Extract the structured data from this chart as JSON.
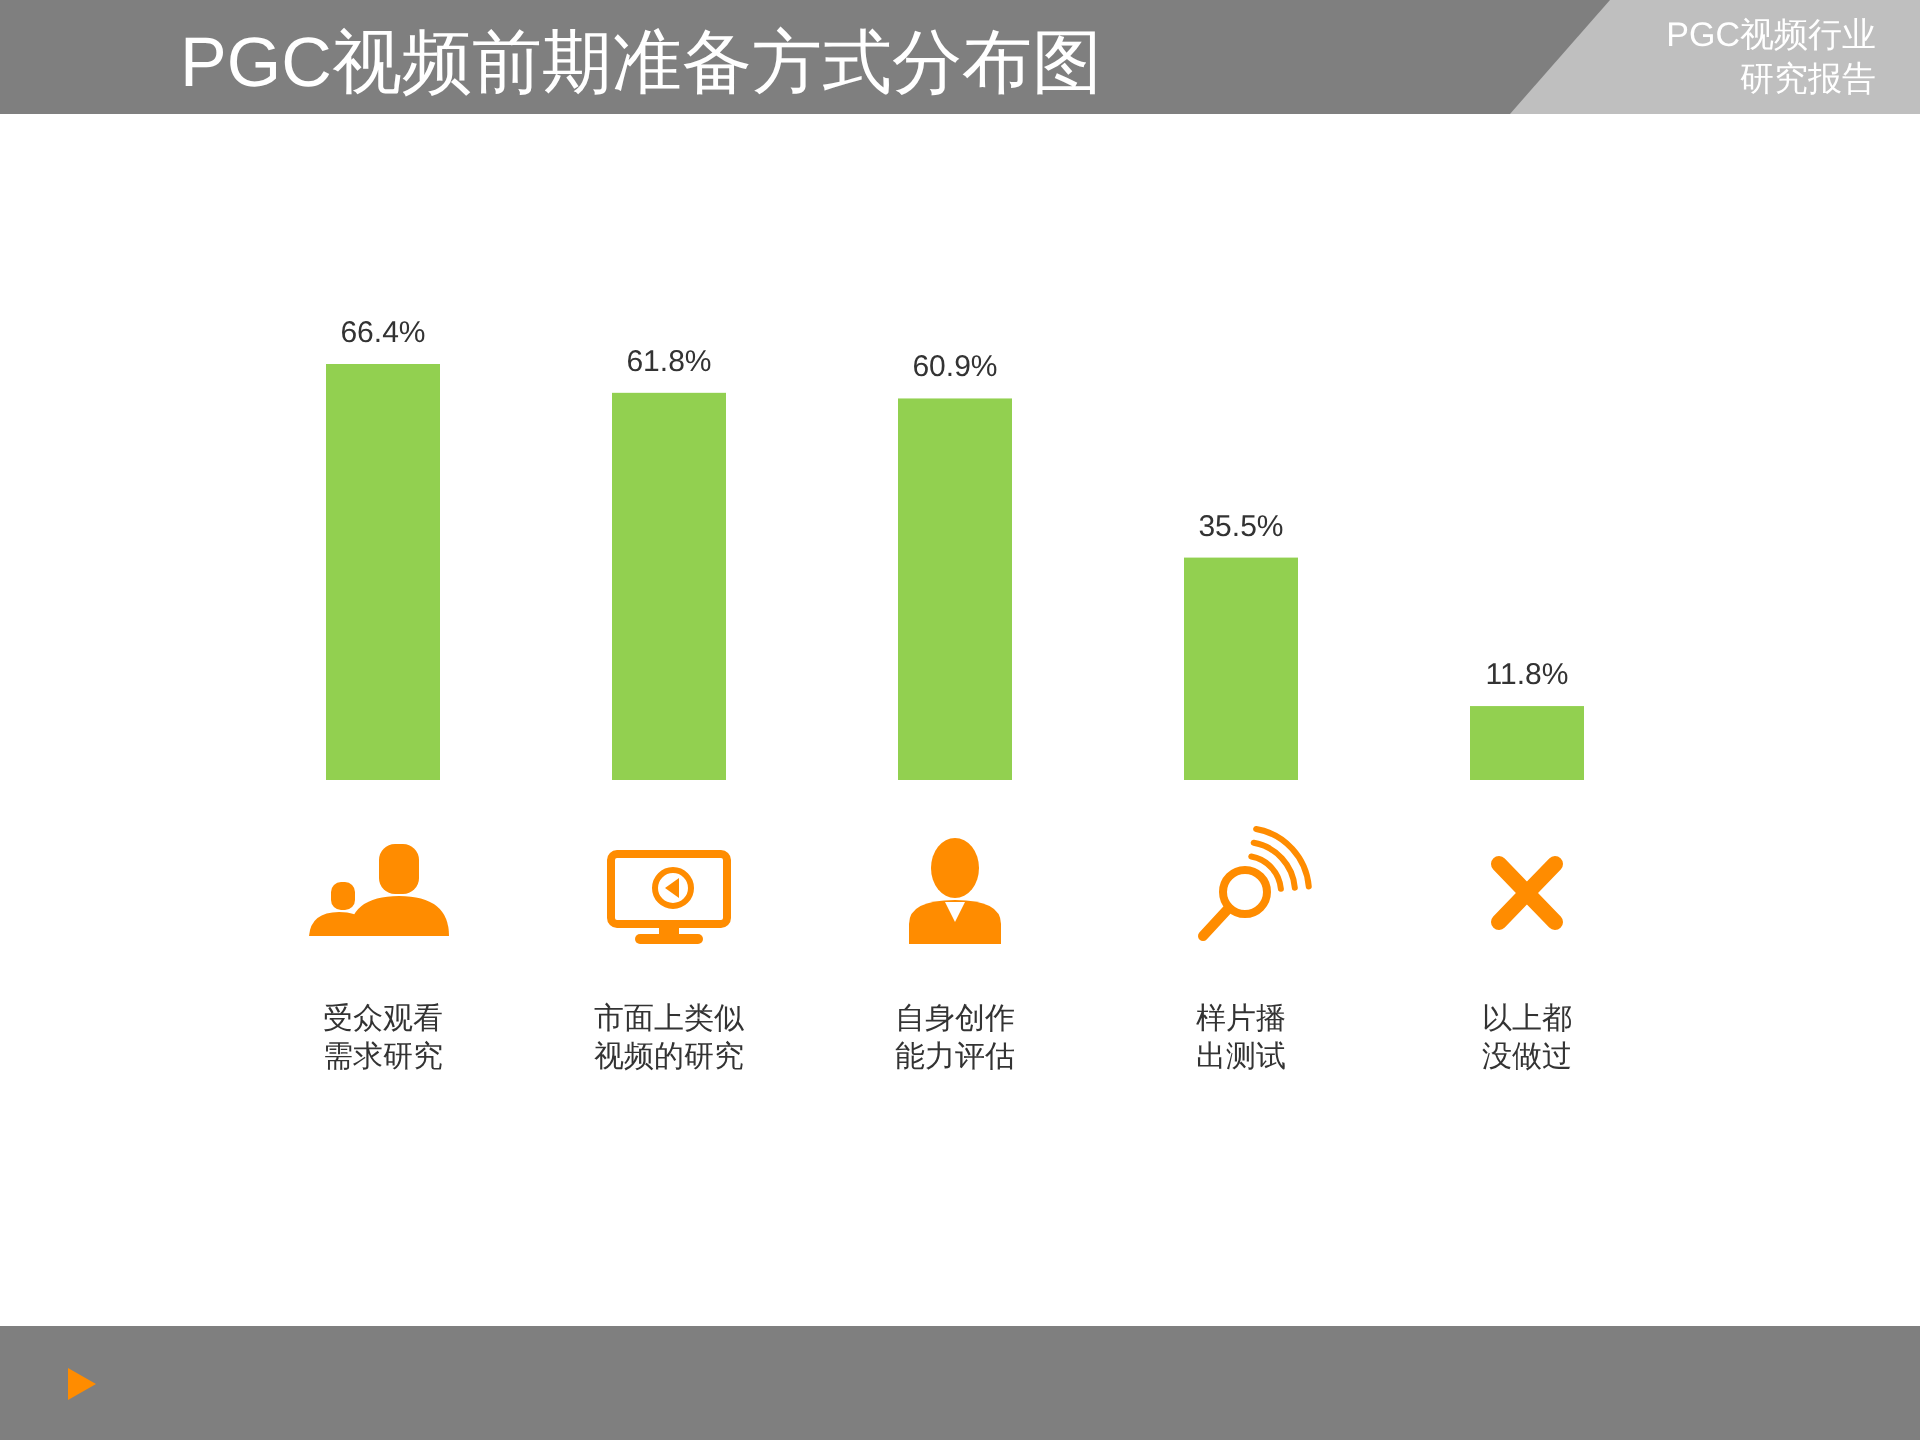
{
  "chart_data": {
    "type": "bar",
    "title": "PGC视频前期准备方式分布图",
    "subtitle": "PGC视频行业研究报告",
    "categories": [
      "受众观看需求研究",
      "市面上类似视频的研究",
      "自身创作能力评估",
      "样片播出测试",
      "以上都没做过"
    ],
    "values": [
      66.4,
      61.8,
      60.9,
      35.5,
      11.8
    ],
    "color": "#92d050",
    "value_labels": [
      "66.4%",
      "61.8%",
      "60.9%",
      "35.5%",
      "11.8%"
    ]
  }
}
